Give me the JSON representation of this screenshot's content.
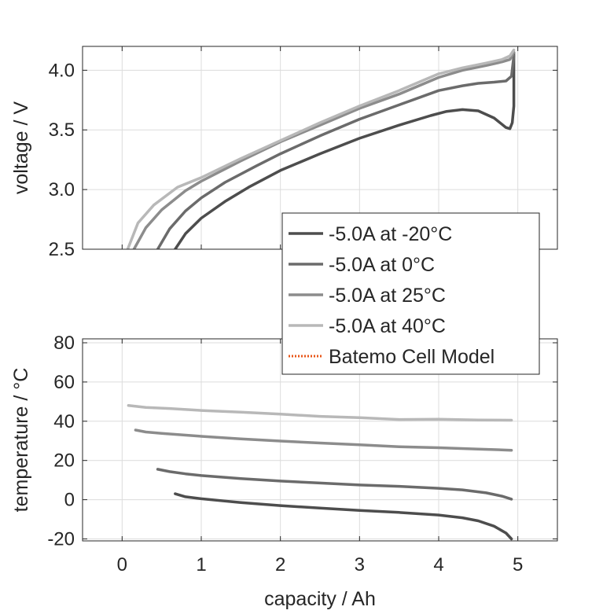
{
  "chart_data": [
    {
      "type": "line",
      "ylabel": "voltage / V",
      "xlabel": "",
      "xlim": [
        -0.5,
        5.5
      ],
      "ylim": [
        2.5,
        4.2
      ],
      "xticks": [
        0,
        1,
        2,
        3,
        4,
        5
      ],
      "yticks": [
        2.5,
        3.0,
        3.5,
        4.0
      ],
      "ytick_labels": [
        "2.5",
        "3.0",
        "3.5",
        "4.0"
      ],
      "grid": true,
      "series": [
        {
          "name": "-5.0A at -20°C",
          "color": "#4d4d4d",
          "x": [
            0.67,
            0.8,
            1.0,
            1.3,
            1.6,
            2.0,
            2.5,
            3.0,
            3.5,
            3.9,
            4.1,
            4.3,
            4.5,
            4.7,
            4.85,
            4.9,
            4.93,
            4.95,
            4.95,
            4.95
          ],
          "y": [
            2.5,
            2.63,
            2.76,
            2.9,
            3.02,
            3.16,
            3.3,
            3.43,
            3.54,
            3.62,
            3.655,
            3.67,
            3.66,
            3.6,
            3.52,
            3.51,
            3.56,
            3.7,
            3.95,
            4.15
          ]
        },
        {
          "name": "-5.0A at 0°C",
          "color": "#6b6b6b",
          "x": [
            0.45,
            0.6,
            0.8,
            1.0,
            1.3,
            1.7,
            2.0,
            2.5,
            3.0,
            3.5,
            4.0,
            4.3,
            4.5,
            4.7,
            4.85,
            4.92,
            4.95
          ],
          "y": [
            2.5,
            2.67,
            2.82,
            2.93,
            3.06,
            3.2,
            3.3,
            3.45,
            3.59,
            3.71,
            3.83,
            3.87,
            3.89,
            3.9,
            3.91,
            3.95,
            4.12
          ]
        },
        {
          "name": "-5.0A at 25°C",
          "color": "#8c8c8c",
          "x": [
            0.15,
            0.3,
            0.5,
            0.8,
            1.0,
            1.5,
            2.0,
            2.5,
            3.0,
            3.5,
            4.0,
            4.3,
            4.6,
            4.8,
            4.9,
            4.95
          ],
          "y": [
            2.5,
            2.68,
            2.83,
            2.99,
            3.07,
            3.24,
            3.4,
            3.54,
            3.68,
            3.8,
            3.94,
            4.0,
            4.04,
            4.07,
            4.09,
            4.15
          ]
        },
        {
          "name": "-5.0A at 40°C",
          "color": "#b8b8b8",
          "x": [
            0.07,
            0.2,
            0.4,
            0.7,
            1.0,
            1.5,
            2.0,
            2.5,
            3.0,
            3.5,
            4.0,
            4.3,
            4.6,
            4.8,
            4.9,
            4.95
          ],
          "y": [
            2.5,
            2.72,
            2.87,
            3.02,
            3.1,
            3.26,
            3.41,
            3.56,
            3.7,
            3.83,
            3.97,
            4.02,
            4.06,
            4.09,
            4.12,
            4.17
          ]
        }
      ]
    },
    {
      "type": "line",
      "ylabel": "temperature / °C",
      "xlabel": "capacity / Ah",
      "xlim": [
        -0.5,
        5.5
      ],
      "ylim": [
        -21,
        82
      ],
      "xticks": [
        0,
        1,
        2,
        3,
        4,
        5
      ],
      "yticks": [
        -20,
        0,
        20,
        40,
        60,
        80
      ],
      "grid": true,
      "series": [
        {
          "name": "-5.0A at -20°C",
          "color": "#4d4d4d",
          "x": [
            0.67,
            0.8,
            1.0,
            1.5,
            2.0,
            2.5,
            3.0,
            3.5,
            4.0,
            4.3,
            4.5,
            4.7,
            4.85,
            4.92
          ],
          "y": [
            3,
            1.5,
            0.5,
            -1.5,
            -3,
            -4.3,
            -5.5,
            -6.5,
            -7.8,
            -9.2,
            -10.8,
            -13.5,
            -17,
            -20
          ]
        },
        {
          "name": "-5.0A at 0°C",
          "color": "#6b6b6b",
          "x": [
            0.45,
            0.6,
            0.8,
            1.0,
            1.5,
            2.0,
            2.5,
            3.0,
            3.5,
            4.0,
            4.3,
            4.6,
            4.8,
            4.92
          ],
          "y": [
            15.5,
            14.3,
            13.2,
            12.3,
            10.8,
            9.5,
            8.5,
            7.5,
            6.8,
            5.8,
            5.0,
            3.5,
            1.8,
            0.3
          ]
        },
        {
          "name": "-5.0A at 25°C",
          "color": "#8c8c8c",
          "x": [
            0.17,
            0.3,
            0.5,
            1.0,
            1.5,
            2.0,
            2.5,
            3.0,
            3.5,
            4.0,
            4.5,
            4.92
          ],
          "y": [
            35.5,
            34.5,
            33.8,
            32.3,
            31.0,
            29.9,
            28.9,
            28.0,
            27.0,
            26.5,
            25.8,
            25.2
          ]
        },
        {
          "name": "-5.0A at 40°C",
          "color": "#b8b8b8",
          "x": [
            0.08,
            0.3,
            0.6,
            1.0,
            1.5,
            2.0,
            2.5,
            3.0,
            3.5,
            4.0,
            4.5,
            4.92
          ],
          "y": [
            48,
            47,
            46.5,
            45.5,
            44.6,
            43.6,
            42.5,
            41.8,
            40.9,
            41.0,
            40.6,
            40.5
          ]
        }
      ]
    }
  ],
  "legend": {
    "placement": "between plots, right",
    "entries": [
      {
        "label": "-5.0A at -20°C",
        "color": "#4d4d4d",
        "style": "solid"
      },
      {
        "label": "-5.0A at 0°C",
        "color": "#6b6b6b",
        "style": "solid"
      },
      {
        "label": "-5.0A at 25°C",
        "color": "#8c8c8c",
        "style": "solid"
      },
      {
        "label": "-5.0A at 40°C",
        "color": "#b8b8b8",
        "style": "solid"
      },
      {
        "label": "Batemo Cell Model",
        "color": "#e8571a",
        "style": "dotted"
      }
    ]
  }
}
